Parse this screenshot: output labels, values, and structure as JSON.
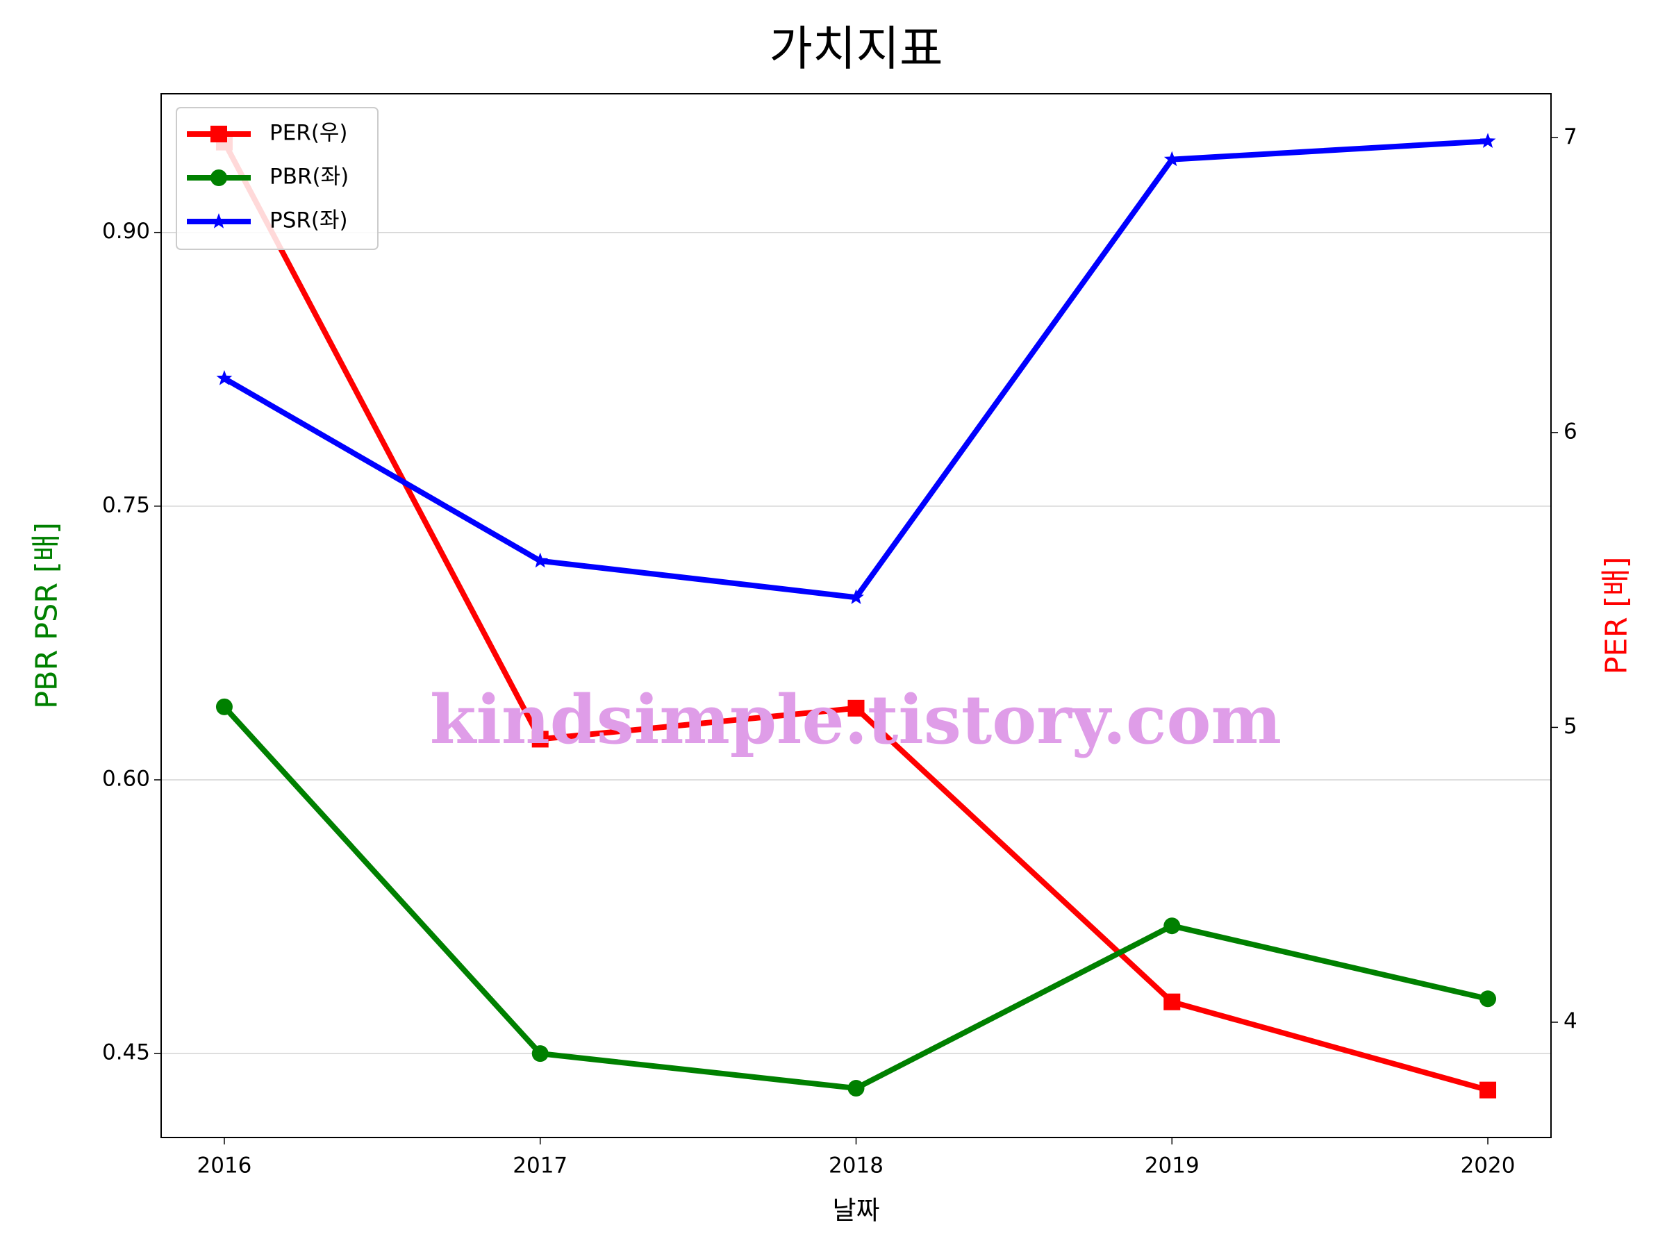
{
  "chart_data": {
    "type": "line",
    "title": "가치지표",
    "xlabel": "날짜",
    "ylabel": "PBR PSR [배]",
    "ylabel_color": "#008000",
    "y2label": "PER [배]",
    "y2label_color": "#ff0000",
    "watermark": "kindsimple.tistory.com",
    "x": [
      2016,
      2017,
      2018,
      2019,
      2020
    ],
    "xlim": [
      2015.8,
      2020.2
    ],
    "xticks": [
      2016,
      2017,
      2018,
      2019,
      2020
    ],
    "ylim": [
      0.404,
      0.976
    ],
    "yticks": [
      {
        "value": 0.45,
        "label": "0.45"
      },
      {
        "value": 0.6,
        "label": "0.60"
      },
      {
        "value": 0.75,
        "label": "0.75"
      },
      {
        "value": 0.9,
        "label": "0.90"
      }
    ],
    "y2lim": [
      3.609,
      7.149
    ],
    "y2ticks": [
      4,
      5,
      6,
      7
    ],
    "grid": true,
    "legend": "upper left",
    "series": [
      {
        "name": "PER(우)",
        "color": "#ff0000",
        "marker": "square",
        "axis": "y2",
        "values": [
          6.985,
          4.96,
          5.065,
          4.069,
          3.77
        ]
      },
      {
        "name": "PBR(좌)",
        "color": "#008000",
        "marker": "circle",
        "values": [
          0.64,
          0.45,
          0.431,
          0.52,
          0.48
        ]
      },
      {
        "name": "PSR(좌)",
        "color": "#0000ff",
        "marker": "star",
        "values": [
          0.82,
          0.72,
          0.7,
          0.94,
          0.95
        ]
      }
    ]
  }
}
